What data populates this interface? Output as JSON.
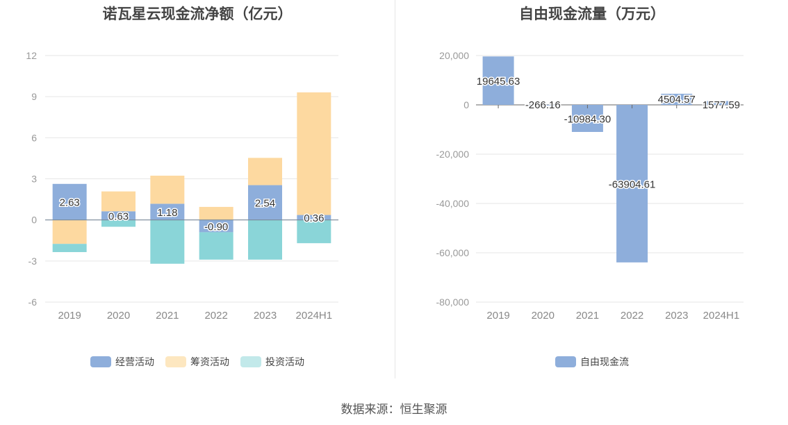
{
  "source": "数据来源：恒生聚源",
  "colors": {
    "operating": "#8eaedb",
    "financing": "#fdd9a0",
    "investing": "#8ad5d8",
    "fcf": "#8eaedb"
  },
  "chart_data": [
    {
      "type": "bar",
      "stacked": true,
      "title": "诺瓦星云现金流净额（亿元）",
      "categories": [
        "2019",
        "2020",
        "2021",
        "2022",
        "2023",
        "2024H1"
      ],
      "ylim": [
        -6,
        12
      ],
      "yticks": [
        "12",
        "9",
        "6",
        "3",
        "0",
        "-3",
        "-6"
      ],
      "series": [
        {
          "name": "经营活动",
          "values": [
            2.63,
            0.63,
            1.18,
            -0.9,
            2.54,
            0.36
          ]
        },
        {
          "name": "筹资活动",
          "values": [
            -1.75,
            1.45,
            2.05,
            0.95,
            1.99,
            8.95
          ]
        },
        {
          "name": "投资活动",
          "values": [
            -0.6,
            -0.5,
            -3.2,
            -2.0,
            -2.9,
            -1.7
          ]
        }
      ],
      "data_labels": [
        "2.63",
        "0.63",
        "1.18",
        "-0.90",
        "2.54",
        "0.36"
      ],
      "legend": "bottom"
    },
    {
      "type": "bar",
      "title": "自由现金流量（万元）",
      "categories": [
        "2019",
        "2020",
        "2021",
        "2022",
        "2023",
        "2024H1"
      ],
      "ylim": [
        -80000,
        20000
      ],
      "yticks": [
        "20,000",
        "0",
        "-20,000",
        "-40,000",
        "-60,000",
        "-80,000"
      ],
      "series": [
        {
          "name": "自由现金流",
          "values": [
            19645.63,
            -266.16,
            -10984.3,
            -63904.61,
            4504.57,
            1577.59
          ]
        }
      ],
      "data_labels": [
        "19645.63",
        "-266.16",
        "-10984.30",
        "-63904.61",
        "4504.57",
        "1577.59"
      ],
      "legend": "bottom"
    }
  ]
}
